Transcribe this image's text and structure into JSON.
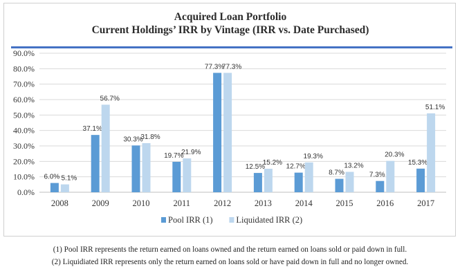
{
  "chart_data": {
    "type": "bar",
    "title": "Acquired Loan Portfolio",
    "subtitle": "Current Holdings’ IRR by Vintage (IRR vs. Date Purchased)",
    "categories": [
      "2008",
      "2009",
      "2010",
      "2011",
      "2012",
      "2013",
      "2014",
      "2015",
      "2016",
      "2017"
    ],
    "series": [
      {
        "name": "Pool IRR (1)",
        "color": "#5b9bd5",
        "values": [
          6.0,
          37.1,
          30.3,
          19.7,
          77.3,
          12.5,
          12.7,
          8.7,
          7.3,
          15.3
        ],
        "labels": [
          "6.0%",
          "37.1%",
          "30.3%",
          "19.7%",
          "77.3%",
          "12.5%",
          "12.7%",
          "8.7%",
          "7.3%",
          "15.3%"
        ]
      },
      {
        "name": "Liquidated IRR (2)",
        "color": "#bdd7ee",
        "values": [
          5.1,
          56.7,
          31.8,
          21.9,
          77.3,
          15.2,
          19.3,
          13.2,
          20.3,
          51.1
        ],
        "labels": [
          "5.1%",
          "56.7%",
          "31.8%",
          "21.9%",
          "77.3%",
          "15.2%",
          "19.3%",
          "13.2%",
          "20.3%",
          "51.1%"
        ]
      }
    ],
    "ylim": [
      0,
      90
    ],
    "yticks": [
      "0.0%",
      "10.0%",
      "20.0%",
      "30.0%",
      "40.0%",
      "50.0%",
      "60.0%",
      "70.0%",
      "80.0%",
      "90.0%"
    ],
    "grid": true,
    "legend_position": "bottom"
  },
  "footnotes": [
    "(1) Pool IRR represents the return earned on loans owned and the return earned on loans sold or paid down in full.",
    "(2) Liquidiated IRR represents only the return earned on loans sold or have paid down in full and no longer owned."
  ]
}
